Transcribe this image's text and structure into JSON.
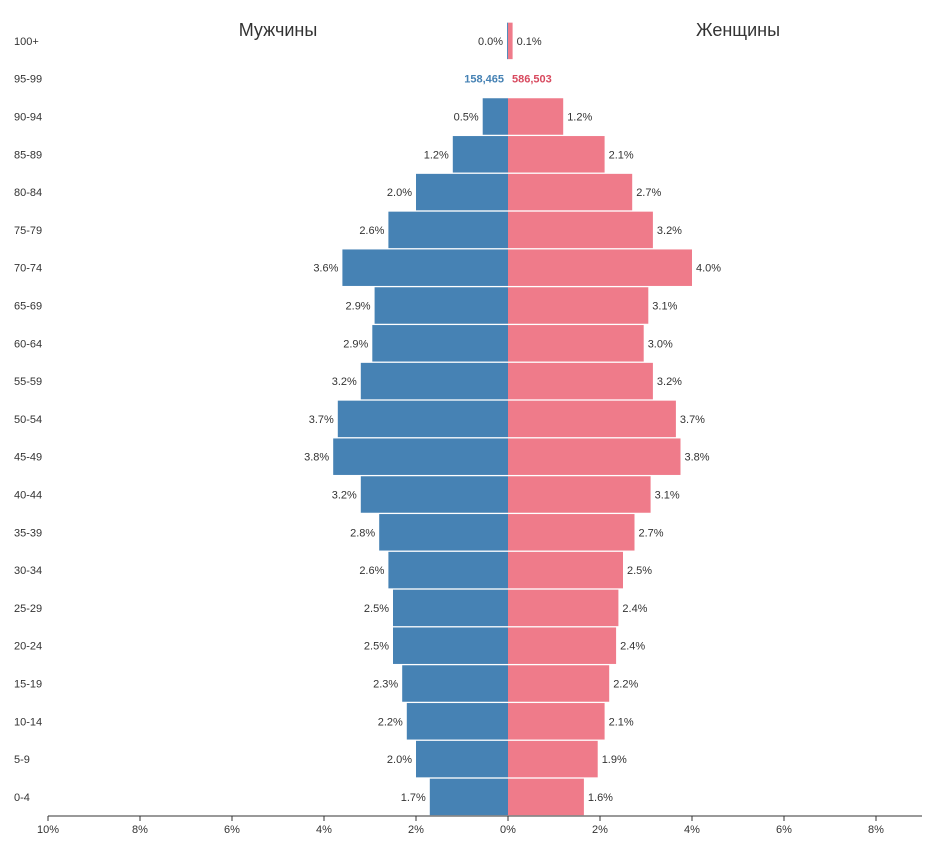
{
  "chart_data": {
    "type": "bar",
    "subtype": "population-pyramid",
    "titles": {
      "male": "Мужчины",
      "female": "Женщины"
    },
    "colors": {
      "male": "#4682b4",
      "female": "#ef7b8a",
      "male_count_text": "#4682b4",
      "female_count_text": "#d84a5f",
      "axis": "#333333"
    },
    "categories": [
      "100+",
      "95-99",
      "90-94",
      "85-89",
      "80-84",
      "75-79",
      "70-74",
      "65-69",
      "60-64",
      "55-59",
      "50-54",
      "45-49",
      "40-44",
      "35-39",
      "30-34",
      "25-29",
      "20-24",
      "15-19",
      "10-14",
      "5-9",
      "0-4"
    ],
    "series": [
      {
        "name": "Мужчины",
        "side": "left",
        "values": [
          0.02,
          null,
          0.55,
          1.2,
          2.0,
          2.6,
          3.6,
          2.9,
          2.95,
          3.2,
          3.7,
          3.8,
          3.2,
          2.8,
          2.6,
          2.5,
          2.5,
          2.3,
          2.2,
          2.0,
          1.7
        ],
        "labels": [
          "0.0%",
          "",
          "0.5%",
          "1.2%",
          "2.0%",
          "2.6%",
          "3.6%",
          "2.9%",
          "2.9%",
          "3.2%",
          "3.7%",
          "3.8%",
          "3.2%",
          "2.8%",
          "2.6%",
          "2.5%",
          "2.5%",
          "2.3%",
          "2.2%",
          "2.0%",
          "1.7%"
        ]
      },
      {
        "name": "Женщины",
        "side": "right",
        "values": [
          0.1,
          null,
          1.2,
          2.1,
          2.7,
          3.15,
          4.0,
          3.05,
          2.95,
          3.15,
          3.65,
          3.75,
          3.1,
          2.75,
          2.5,
          2.4,
          2.35,
          2.2,
          2.1,
          1.95,
          1.65
        ],
        "labels": [
          "0.1%",
          "",
          "1.2%",
          "2.1%",
          "2.7%",
          "3.2%",
          "4.0%",
          "3.1%",
          "3.0%",
          "3.2%",
          "3.7%",
          "3.8%",
          "3.1%",
          "2.7%",
          "2.5%",
          "2.4%",
          "2.4%",
          "2.2%",
          "2.1%",
          "1.9%",
          "1.6%"
        ]
      }
    ],
    "counts": {
      "category": "95-99",
      "male": "158,465",
      "female": "586,503"
    },
    "x_axis": {
      "ticks": [
        -10,
        -8,
        -6,
        -4,
        -2,
        0,
        2,
        4,
        6,
        8
      ],
      "tick_labels": [
        "10%",
        "8%",
        "6%",
        "4%",
        "2%",
        "0%",
        "2%",
        "4%",
        "6%",
        "8%"
      ],
      "xlim": [
        -10,
        9
      ]
    },
    "grid": false,
    "legend": "none"
  }
}
